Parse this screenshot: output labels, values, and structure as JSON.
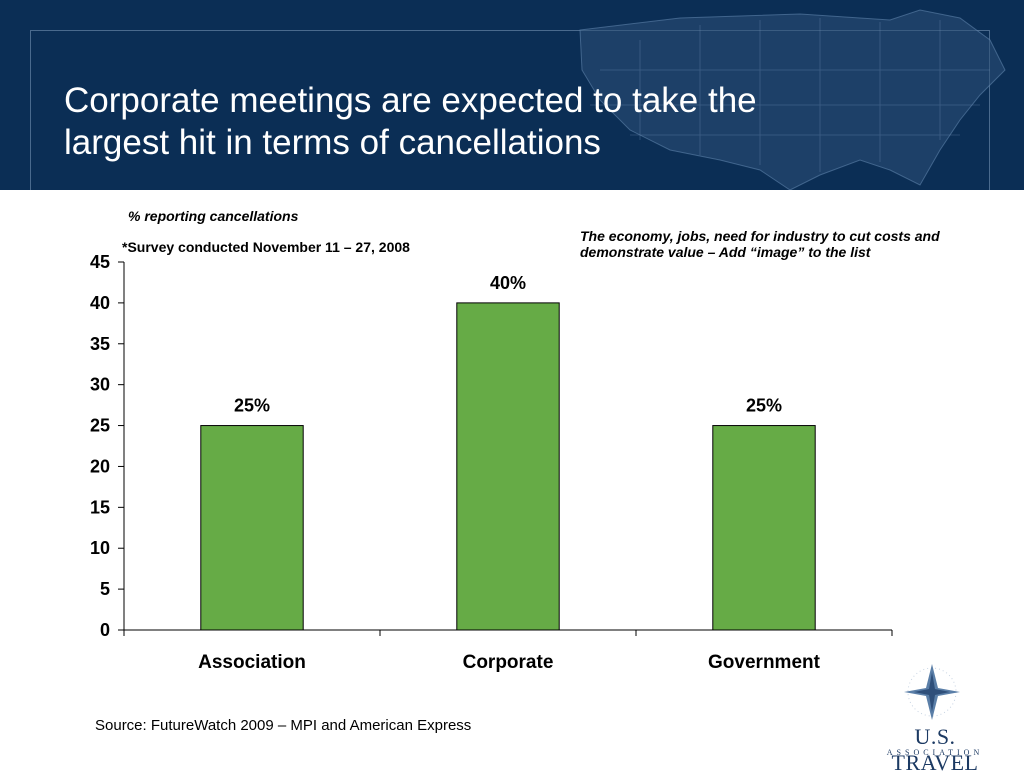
{
  "slide": {
    "title_line1": "Corporate meetings are expected to take the",
    "title_line2": "largest hit in terms of cancellations",
    "subtitle": "%  reporting cancellations",
    "survey_note": "*Survey conducted November 11 – 27, 2008",
    "annotation": "The economy, jobs, need for industry to cut costs and demonstrate value – Add “image” to the list",
    "source": "Source: FutureWatch  2009 – MPI and American Express"
  },
  "logo": {
    "name": "U.S. TRAVEL",
    "sub": "ASSOCIATION",
    "icon": "compass-star-icon"
  },
  "colors": {
    "header_bg": "#0b2e55",
    "bar_fill": "#66ab46",
    "bar_stroke": "#000000"
  },
  "chart_data": {
    "type": "bar",
    "categories": [
      "Association",
      "Corporate",
      "Government"
    ],
    "values": [
      25,
      40,
      25
    ],
    "data_labels": [
      "25%",
      "40%",
      "25%"
    ],
    "ylim": [
      0,
      45
    ],
    "yticks": [
      0,
      5,
      10,
      15,
      20,
      25,
      30,
      35,
      40,
      45
    ],
    "xlabel": "",
    "ylabel": "",
    "grid": false,
    "legend": "none"
  }
}
